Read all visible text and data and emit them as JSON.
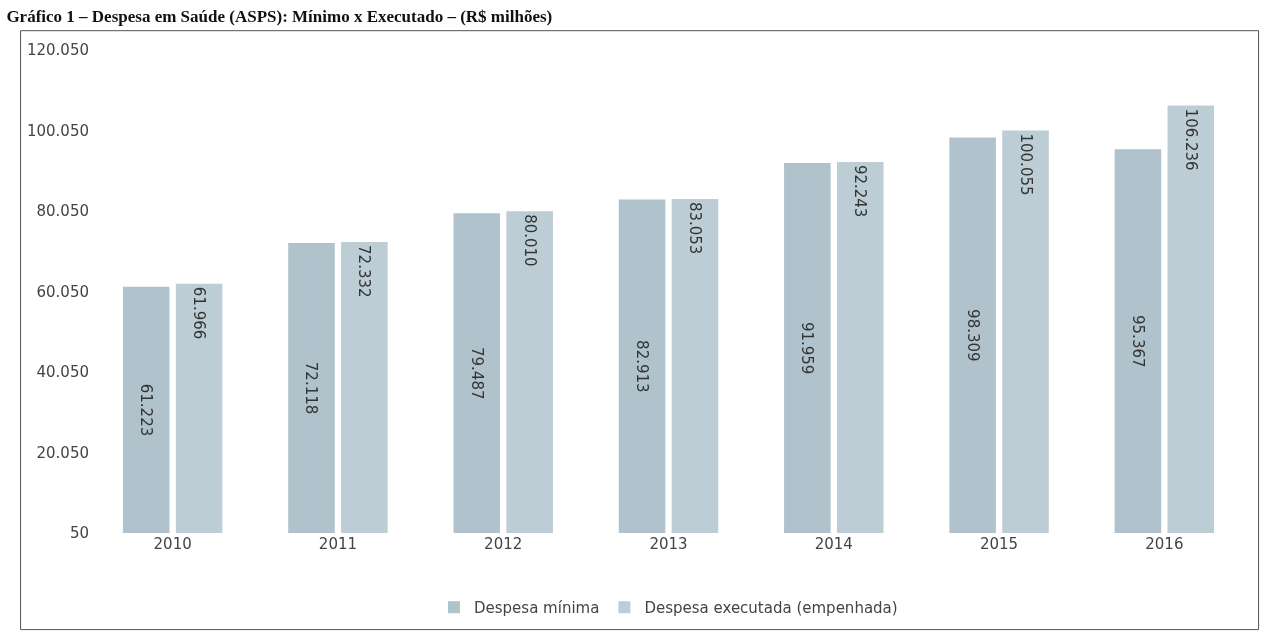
{
  "chart_data": {
    "type": "bar",
    "title": "Gráfico 1 – Despesa em Saúde (ASPS): Mínimo x Executado – (R$ milhões)",
    "categories": [
      "2010",
      "2011",
      "2012",
      "2013",
      "2014",
      "2015",
      "2016"
    ],
    "series": [
      {
        "name": "Despesa mínima",
        "color": "#b0c2cb",
        "values": [
          61223,
          72118,
          79487,
          82913,
          91959,
          98309,
          95367
        ],
        "value_labels": [
          "61.223",
          "72.118",
          "79.487",
          "82.913",
          "91.959",
          "98.309",
          "95.367"
        ]
      },
      {
        "name": "Despesa executada (empenhada)",
        "color": "#bccdd6",
        "values": [
          61966,
          72332,
          80010,
          83053,
          92243,
          100055,
          106236
        ],
        "value_labels": [
          "61.966",
          "72.332",
          "80.010",
          "83.053",
          "92.243",
          "100.055",
          "106.236"
        ]
      }
    ],
    "ylim": [
      50,
      120050
    ],
    "yticks": [
      {
        "value": 50,
        "label": "50"
      },
      {
        "value": 20050,
        "label": "20.050"
      },
      {
        "value": 40050,
        "label": "40.050"
      },
      {
        "value": 60050,
        "label": "60.050"
      },
      {
        "value": 80050,
        "label": "80.050"
      },
      {
        "value": 100050,
        "label": "100.050"
      },
      {
        "value": 120050,
        "label": "120.050"
      }
    ],
    "grid": false,
    "legend": "bottom"
  }
}
